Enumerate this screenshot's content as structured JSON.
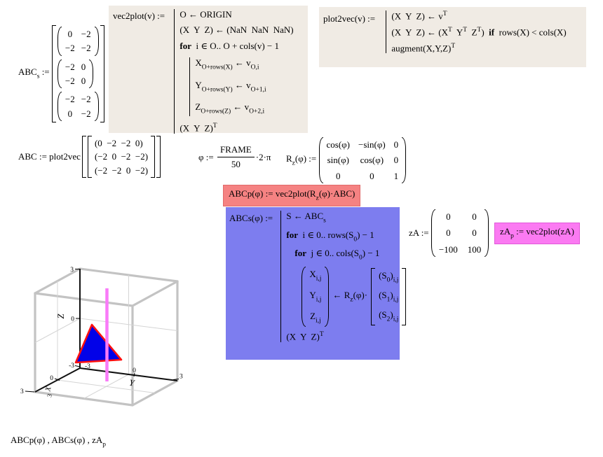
{
  "colors": {
    "region_bg": "#f0ebe4",
    "abcp_bg": "#f58282",
    "abcs_bg": "#7d7def",
    "zap_bg": "#fb7af2",
    "frame": "#c3c3c3",
    "grid": "#d4d4d4",
    "axis": "#111111",
    "triangle_fill": "#0202e8",
    "triangle_stroke": "#ff1010",
    "zline": "#f97af8"
  },
  "abcs_def": {
    "label": "ABC_{s} := ",
    "m1": [
      [
        "0",
        "−2"
      ],
      [
        "−2",
        "−2"
      ]
    ],
    "m2": [
      [
        "−2",
        "0"
      ],
      [
        "−2",
        "0"
      ]
    ],
    "m3": [
      [
        "−2",
        "−2"
      ],
      [
        "0",
        "−2"
      ]
    ]
  },
  "vec2plot": {
    "header": "vec2plot(v) := ",
    "l1": "O ← ORIGIN",
    "l2": "(X  Y  Z) ← (NaN  NaN  NaN)",
    "l3": "\\b{for}  i ∈ O.. O + cols(v) − 1",
    "l4": "X_{O+rows(X)} ← v_{O,i}",
    "l5": "Y_{O+rows(Y)} ← v_{O+1,i}",
    "l6": "Z_{O+rows(Z)} ← v_{O+2,i}",
    "l7": "(X  Y  Z)^{T}"
  },
  "plot2vec": {
    "header": "plot2vec(v) := ",
    "l1": "(X  Y  Z) ← v^{T}",
    "l2": "(X  Y  Z) ← (X^{T}  Y^{T}  Z^{T})  \\b{if}  rows(X) < cols(X)",
    "l3": "augment(X,Y,Z)^{T}"
  },
  "abc_def": {
    "label": "ABC := plot2vec",
    "rows": [
      "(0  −2  −2  0)",
      "(−2  0  −2  −2)",
      "(−2  −2  0  −2)"
    ]
  },
  "phi": {
    "lhs": "φ := ",
    "num": "FRAME",
    "den": "50",
    "rhs": "·2·π"
  },
  "rz": {
    "label": "R_{z}(φ) := ",
    "rows": [
      [
        "cos(φ)",
        "−sin(φ)",
        "0"
      ],
      [
        "sin(φ)",
        "cos(φ)",
        "0"
      ],
      [
        "0",
        "0",
        "1"
      ]
    ]
  },
  "abcp": {
    "text": "ABCp(φ) := vec2plot(R_{z}(φ)·ABC)"
  },
  "abcs_prog": {
    "header": "ABCs(φ) := ",
    "l1": "S ← ABC_{s}",
    "l2": "\\b{for}  i ∈ 0.. rows(S_{0}) − 1",
    "l3": "\\b{for}  j ∈ 0.. cols(S_{0}) − 1",
    "vec_left": [
      "X_{i,j}",
      "Y_{i,j}",
      "Z_{i,j}"
    ],
    "arrow": "← R_{z}(φ)·",
    "vec_right": [
      "(S_{0})_{i,j}",
      "(S_{1})_{i,j}",
      "(S_{2})_{i,j}"
    ],
    "l5": "(X  Y  Z)^{T}"
  },
  "za": {
    "label": "zA := ",
    "rows": [
      [
        "0",
        "0"
      ],
      [
        "0",
        "0"
      ],
      [
        "−100",
        "100"
      ]
    ]
  },
  "zap": {
    "text": "zA_{p} := vec2plot(zA)"
  },
  "result_line": "ABCp(φ) , ABCs(φ) , zA_{p}",
  "plot3d": {
    "type": "3d-plot",
    "labels": {
      "x": "X",
      "y": "Y",
      "z": "Z"
    },
    "ticks": {
      "z_top": "3",
      "z_mid": "0",
      "z_bot": "-3",
      "y_min": "-3",
      "y_mid": "0",
      "y_max": "3",
      "x_mid": "0",
      "x_max": "3",
      "x_rot": "3"
    },
    "axis_range": [
      -3,
      3
    ],
    "series": [
      {
        "name": "ABCp(φ)/ABCs(φ) triangle",
        "points_xyz": [
          [
            0,
            -2,
            -2
          ],
          [
            -2,
            0,
            -2
          ],
          [
            -2,
            -2,
            0
          ]
        ]
      },
      {
        "name": "zA_p vertical line",
        "x": 0,
        "y": 0,
        "z": [
          -100,
          100
        ]
      }
    ]
  }
}
